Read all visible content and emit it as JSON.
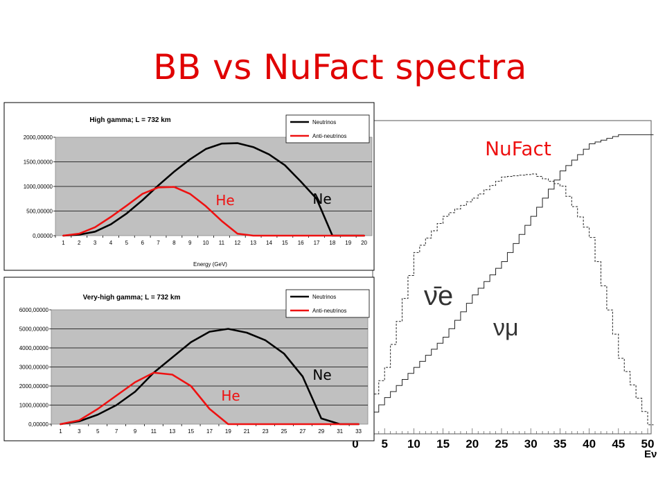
{
  "slide": {
    "title": "BB vs NuFact spectra"
  },
  "colors": {
    "title": "#e00000",
    "neutrinos": "#000000",
    "anti_neutrinos": "#ee1111",
    "plot_area": "#c0c0c0",
    "annotation": "#ee1111"
  },
  "chart_data": [
    {
      "type": "line",
      "title": "High gamma; L = 732 km",
      "xlabel": "Energy (GeV)",
      "ylabel": "",
      "x": [
        1,
        2,
        3,
        4,
        5,
        6,
        7,
        8,
        9,
        10,
        11,
        12,
        13,
        14,
        15,
        16,
        17,
        18,
        19,
        20
      ],
      "xticks": [
        "1",
        "2",
        "3",
        "4",
        "5",
        "6",
        "7",
        "8",
        "9",
        "10",
        "11",
        "12",
        "13",
        "14",
        "15",
        "16",
        "17",
        "18",
        "19",
        "20"
      ],
      "ylim": [
        0,
        2000
      ],
      "yticks": [
        "0,00000",
        "500,00000",
        "1000,00000",
        "1500,00000",
        "2000,00000"
      ],
      "grid": true,
      "legend": "top-right",
      "series": [
        {
          "name": "Neutrinos",
          "values": [
            0,
            20,
            80,
            230,
            450,
            720,
            1020,
            1300,
            1550,
            1760,
            1870,
            1880,
            1800,
            1650,
            1430,
            1100,
            750,
            0,
            0,
            0
          ]
        },
        {
          "name": "Anti-neutrinos",
          "values": [
            0,
            40,
            170,
            380,
            610,
            850,
            980,
            990,
            850,
            600,
            300,
            40,
            0,
            0,
            0,
            0,
            0,
            0,
            0,
            0
          ]
        }
      ],
      "annotations": [
        "He",
        "Ne"
      ]
    },
    {
      "type": "line",
      "title": "Very-high gamma; L = 732 km",
      "xlabel": "",
      "ylabel": "",
      "x": [
        1,
        3,
        5,
        7,
        9,
        11,
        13,
        15,
        17,
        19,
        21,
        23,
        25,
        27,
        29,
        31,
        33
      ],
      "xticks": [
        "1",
        "3",
        "5",
        "7",
        "9",
        "11",
        "13",
        "15",
        "17",
        "19",
        "21",
        "23",
        "25",
        "27",
        "29",
        "31",
        "33"
      ],
      "ylim": [
        0,
        6000
      ],
      "yticks": [
        "0,00000",
        "1000,00000",
        "2000,00000",
        "3000,00000",
        "4000,00000",
        "5000,00000",
        "6000,00000"
      ],
      "grid": true,
      "legend": "top-right",
      "series": [
        {
          "name": "Neutrinos",
          "values": [
            0,
            150,
            500,
            1000,
            1700,
            2700,
            3500,
            4300,
            4850,
            5000,
            4800,
            4400,
            3700,
            2500,
            300,
            0,
            0
          ]
        },
        {
          "name": "Anti-neutrinos",
          "values": [
            0,
            200,
            800,
            1500,
            2200,
            2700,
            2600,
            2000,
            800,
            0,
            0,
            0,
            0,
            0,
            0,
            0,
            0
          ]
        }
      ],
      "annotations": [
        "He",
        "Ne"
      ]
    },
    {
      "type": "line",
      "title": "NuFact",
      "xlabel": "Eν",
      "ylabel": "",
      "x": [
        0,
        5,
        10,
        15,
        20,
        25,
        30,
        35,
        40,
        45,
        50
      ],
      "xticks": [
        "0",
        "5",
        "10",
        "15",
        "20",
        "25",
        "30",
        "35",
        "40",
        "45",
        "50"
      ],
      "xlim": [
        0,
        50
      ],
      "ylim": [
        0,
        100
      ],
      "grid": false,
      "series": [
        {
          "name": "ν̄e",
          "style": "dashed",
          "values": [
            0,
            22,
            60,
            72,
            78,
            85,
            86,
            82,
            65,
            25,
            3
          ]
        },
        {
          "name": "νμ",
          "style": "solid",
          "values": [
            0,
            12,
            22,
            32,
            46,
            57,
            72,
            87,
            96,
            99,
            99
          ]
        }
      ]
    }
  ]
}
